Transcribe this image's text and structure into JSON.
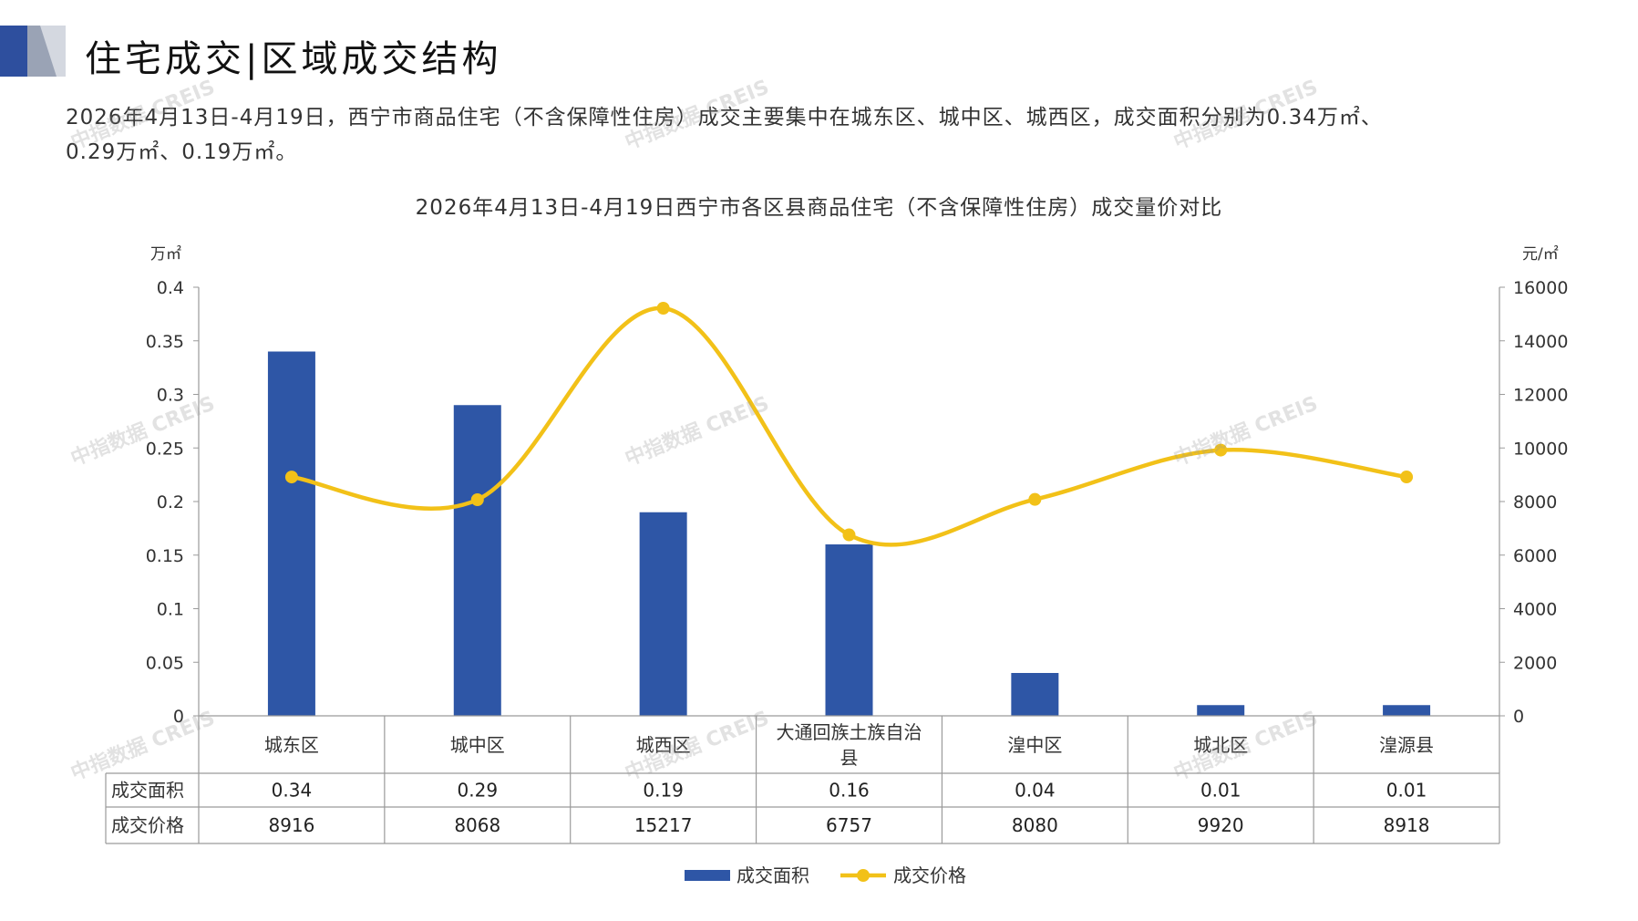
{
  "header": {
    "title": "住宅成交|区域成交结构",
    "colors": {
      "primary": "#2E4F9E",
      "secondary": "#9AA3B5",
      "light": "#D4D8E0"
    }
  },
  "summary": {
    "line1": "2026年4月13日-4月19日，西宁市商品住宅（不含保障性住房）成交主要集中在城东区、城中区、城西区，成交面积分别为0.34万㎡、",
    "line2": "0.29万㎡、0.19万㎡。"
  },
  "watermark": "中指数据 CREIS",
  "chart_data": {
    "type": "bar",
    "title": "2026年4月13日-4月19日西宁市各区县商品住宅（不含保障性住房）成交量价对比",
    "categories": [
      "城东区",
      "城中区",
      "城西区",
      "大通回族土族自治县",
      "湟中区",
      "城北区",
      "湟源县"
    ],
    "category_lines": [
      [
        "城东区"
      ],
      [
        "城中区"
      ],
      [
        "城西区"
      ],
      [
        "大通回族土族自治",
        "县"
      ],
      [
        "湟中区"
      ],
      [
        "城北区"
      ],
      [
        "湟源县"
      ]
    ],
    "series": [
      {
        "name": "成交面积",
        "type": "bar",
        "axis": "left",
        "color": "#2E56A6",
        "values": [
          0.34,
          0.29,
          0.19,
          0.16,
          0.04,
          0.01,
          0.01
        ],
        "labels": [
          "0.34",
          "0.29",
          "0.19",
          "0.16",
          "0.04",
          "0.01",
          "0.01"
        ]
      },
      {
        "name": "成交价格",
        "type": "line",
        "axis": "right",
        "color": "#F2C118",
        "values": [
          8916,
          8068,
          15217,
          6757,
          8080,
          9920,
          8918
        ],
        "labels": [
          "8916",
          "8068",
          "15217",
          "6757",
          "8080",
          "9920",
          "8918"
        ]
      }
    ],
    "y_left": {
      "unit": "万㎡",
      "min": 0,
      "max": 0.4,
      "ticks": [
        "0",
        "0.05",
        "0.1",
        "0.15",
        "0.2",
        "0.25",
        "0.3",
        "0.35",
        "0.4"
      ]
    },
    "y_right": {
      "unit": "元/㎡",
      "min": 0,
      "max": 16000,
      "ticks": [
        "0",
        "2000",
        "4000",
        "6000",
        "8000",
        "10000",
        "12000",
        "14000",
        "16000"
      ]
    },
    "legend_position": "bottom",
    "grid": false,
    "data_table": true
  }
}
